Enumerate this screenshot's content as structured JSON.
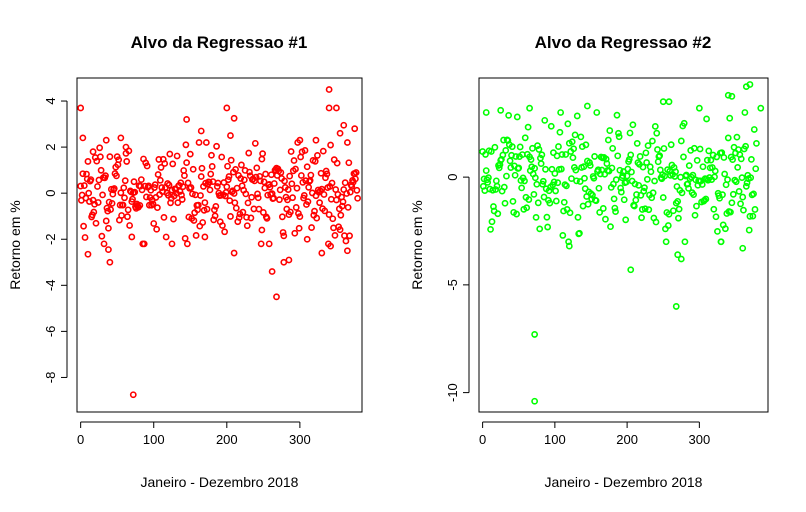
{
  "chart_data": [
    {
      "type": "scatter",
      "title": "Alvo da Regressao #1",
      "xlabel": "Janeiro - Dezembro 2018",
      "ylabel": "Retorno em %",
      "xlim": [
        -5,
        385
      ],
      "ylim": [
        -9.5,
        5.0
      ],
      "xticks": [
        0,
        100,
        200,
        300
      ],
      "yticks": [
        -8,
        -6,
        -4,
        -2,
        0,
        2,
        4
      ],
      "color": "#ff0000",
      "marker": "open-circle",
      "n_points": 380,
      "outliers": [
        {
          "x": 0,
          "y": 3.7
        },
        {
          "x": 3,
          "y": 2.4
        },
        {
          "x": 10,
          "y": -2.65
        },
        {
          "x": 17,
          "y": 1.8
        },
        {
          "x": 35,
          "y": 2.3
        },
        {
          "x": 38,
          "y": -2.45
        },
        {
          "x": 40,
          "y": -3.0
        },
        {
          "x": 55,
          "y": 2.4
        },
        {
          "x": 62,
          "y": 2.0
        },
        {
          "x": 70,
          "y": -1.9
        },
        {
          "x": 72,
          "y": -8.75
        },
        {
          "x": 125,
          "y": -2.2
        },
        {
          "x": 145,
          "y": 3.2
        },
        {
          "x": 165,
          "y": 2.7
        },
        {
          "x": 170,
          "y": -1.9
        },
        {
          "x": 200,
          "y": 3.7
        },
        {
          "x": 205,
          "y": 2.5
        },
        {
          "x": 210,
          "y": 3.25
        },
        {
          "x": 210,
          "y": -2.6
        },
        {
          "x": 248,
          "y": -1.6
        },
        {
          "x": 258,
          "y": -2.2
        },
        {
          "x": 262,
          "y": -3.4
        },
        {
          "x": 268,
          "y": -4.5
        },
        {
          "x": 278,
          "y": -3.0
        },
        {
          "x": 285,
          "y": -2.9
        },
        {
          "x": 300,
          "y": 2.3
        },
        {
          "x": 310,
          "y": -2.0
        },
        {
          "x": 322,
          "y": 2.3
        },
        {
          "x": 340,
          "y": 4.5
        },
        {
          "x": 340,
          "y": 3.7
        },
        {
          "x": 342,
          "y": -2.3
        },
        {
          "x": 350,
          "y": 3.7
        },
        {
          "x": 355,
          "y": 2.6
        },
        {
          "x": 360,
          "y": 2.95
        },
        {
          "x": 365,
          "y": -2.5
        },
        {
          "x": 375,
          "y": 2.8
        },
        {
          "x": 330,
          "y": -2.6
        }
      ],
      "body_sd": 0.95
    },
    {
      "type": "scatter",
      "title": "Alvo da Regressao #2",
      "xlabel": "Janeiro - Dezembro 2018",
      "ylabel": "Retorno em %",
      "xlim": [
        -5,
        395
      ],
      "ylim": [
        -10.9,
        4.6
      ],
      "xticks": [
        0,
        100,
        200,
        300
      ],
      "yticks": [
        -10,
        -5,
        0
      ],
      "color": "#00ff00",
      "marker": "open-circle",
      "n_points": 380,
      "outliers": [
        {
          "x": 72,
          "y": -10.4
        },
        {
          "x": 72,
          "y": -7.3
        },
        {
          "x": 268,
          "y": -6.0
        },
        {
          "x": 205,
          "y": -4.3
        },
        {
          "x": 270,
          "y": -3.6
        },
        {
          "x": 275,
          "y": -3.8
        },
        {
          "x": 120,
          "y": -3.2
        },
        {
          "x": 360,
          "y": -3.3
        },
        {
          "x": 330,
          "y": -3.0
        },
        {
          "x": 5,
          "y": 3.0
        },
        {
          "x": 25,
          "y": 3.1
        },
        {
          "x": 65,
          "y": 3.2
        },
        {
          "x": 145,
          "y": 3.3
        },
        {
          "x": 250,
          "y": 3.5
        },
        {
          "x": 258,
          "y": 3.5
        },
        {
          "x": 340,
          "y": 3.8
        },
        {
          "x": 345,
          "y": 3.75
        },
        {
          "x": 365,
          "y": 4.2
        },
        {
          "x": 370,
          "y": 4.3
        },
        {
          "x": 385,
          "y": 3.2
        },
        {
          "x": 300,
          "y": 3.2
        },
        {
          "x": 310,
          "y": 2.7
        }
      ],
      "body_sd": 1.3
    }
  ]
}
